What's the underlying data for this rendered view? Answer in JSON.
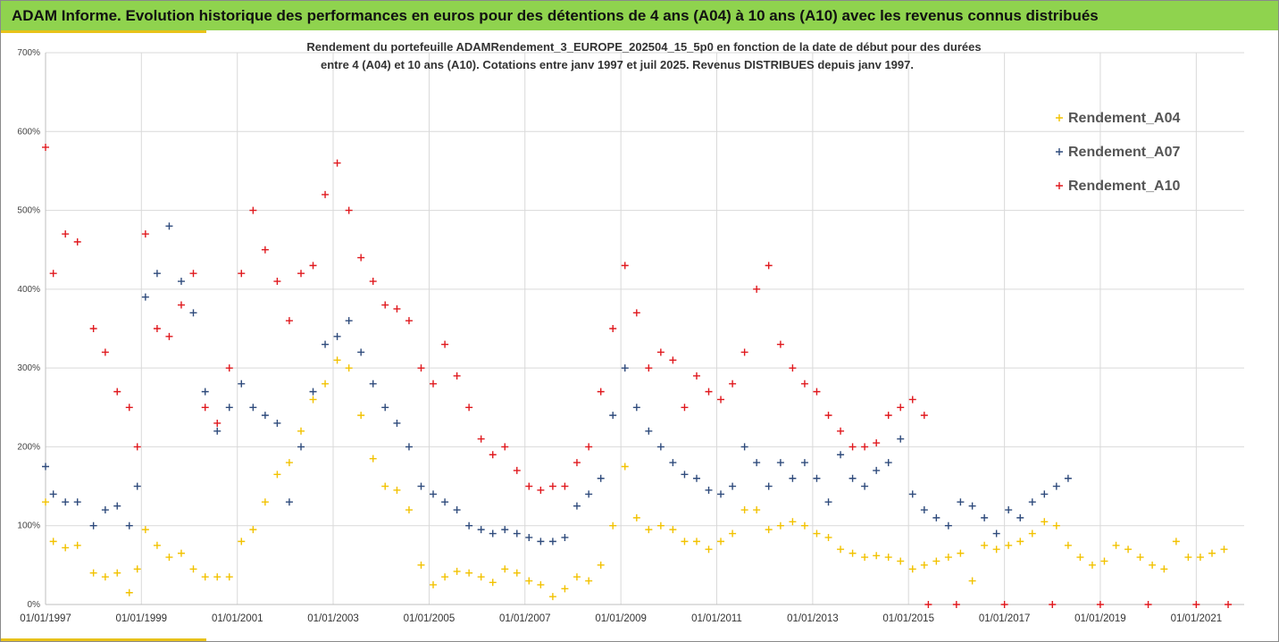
{
  "header": {
    "title": "ADAM Informe. Evolution historique des performances en euros pour des détentions de 4 ans (A04) à 10 ans (A10) avec les revenus connus distribués"
  },
  "colors": {
    "title_bar": "#8fd34e",
    "accent": "#e8c21a",
    "A04": "#f2c200",
    "A07": "#2f4b7c",
    "A10": "#e0191e"
  },
  "chart_data": {
    "type": "scatter",
    "title_lines": [
      "Rendement du portefeuille ADAMRendement_3_EUROPE_202504_15_5p0  en fonction de la date de début pour des durées",
      "entre 4 (A04) et 10 ans (A10). Cotations  entre janv 1997 et juil 2025. Revenus DISTRIBUES depuis janv 1997."
    ],
    "xlabel": "",
    "ylabel": "",
    "x_range": [
      "1997-01-01",
      "2022-01-01"
    ],
    "ylim": [
      0,
      700
    ],
    "y_ticks": [
      "0%",
      "100%",
      "200%",
      "300%",
      "400%",
      "500%",
      "600%",
      "700%"
    ],
    "x_ticks": [
      "01/01/1997",
      "01/01/1999",
      "01/01/2001",
      "01/01/2003",
      "01/01/2005",
      "01/01/2007",
      "01/01/2009",
      "01/01/2011",
      "01/01/2013",
      "01/01/2015",
      "01/01/2017",
      "01/01/2019",
      "01/01/2021"
    ],
    "grid": true,
    "legend_position": "top-right",
    "marker": "+",
    "series": [
      {
        "name": "Rendement_A04",
        "color": "#f2c200",
        "points": [
          [
            "1997-01-01",
            130
          ],
          [
            "1997-03-01",
            80
          ],
          [
            "1997-06-01",
            72
          ],
          [
            "1997-09-01",
            75
          ],
          [
            "1998-01-01",
            40
          ],
          [
            "1998-04-01",
            35
          ],
          [
            "1998-07-01",
            40
          ],
          [
            "1998-10-01",
            15
          ],
          [
            "1998-12-01",
            45
          ],
          [
            "1999-02-01",
            95
          ],
          [
            "1999-05-01",
            75
          ],
          [
            "1999-08-01",
            60
          ],
          [
            "1999-11-01",
            65
          ],
          [
            "2000-02-01",
            45
          ],
          [
            "2000-05-01",
            35
          ],
          [
            "2000-08-01",
            35
          ],
          [
            "2000-11-01",
            35
          ],
          [
            "2001-02-01",
            80
          ],
          [
            "2001-05-01",
            95
          ],
          [
            "2001-08-01",
            130
          ],
          [
            "2001-11-01",
            165
          ],
          [
            "2002-02-01",
            180
          ],
          [
            "2002-05-01",
            220
          ],
          [
            "2002-08-01",
            260
          ],
          [
            "2002-11-01",
            280
          ],
          [
            "2003-02-01",
            310
          ],
          [
            "2003-05-01",
            300
          ],
          [
            "2003-08-01",
            240
          ],
          [
            "2003-11-01",
            185
          ],
          [
            "2004-02-01",
            150
          ],
          [
            "2004-05-01",
            145
          ],
          [
            "2004-08-01",
            120
          ],
          [
            "2004-11-01",
            50
          ],
          [
            "2005-02-01",
            25
          ],
          [
            "2005-05-01",
            35
          ],
          [
            "2005-08-01",
            42
          ],
          [
            "2005-11-01",
            40
          ],
          [
            "2006-02-01",
            35
          ],
          [
            "2006-05-01",
            28
          ],
          [
            "2006-08-01",
            45
          ],
          [
            "2006-11-01",
            40
          ],
          [
            "2007-02-01",
            30
          ],
          [
            "2007-05-01",
            25
          ],
          [
            "2007-08-01",
            10
          ],
          [
            "2007-11-01",
            20
          ],
          [
            "2008-02-01",
            35
          ],
          [
            "2008-05-01",
            30
          ],
          [
            "2008-08-01",
            50
          ],
          [
            "2008-11-01",
            100
          ],
          [
            "2009-02-01",
            175
          ],
          [
            "2009-05-01",
            110
          ],
          [
            "2009-08-01",
            95
          ],
          [
            "2009-11-01",
            100
          ],
          [
            "2010-02-01",
            95
          ],
          [
            "2010-05-01",
            80
          ],
          [
            "2010-08-01",
            80
          ],
          [
            "2010-11-01",
            70
          ],
          [
            "2011-02-01",
            80
          ],
          [
            "2011-05-01",
            90
          ],
          [
            "2011-08-01",
            120
          ],
          [
            "2011-11-01",
            120
          ],
          [
            "2012-02-01",
            95
          ],
          [
            "2012-05-01",
            100
          ],
          [
            "2012-08-01",
            105
          ],
          [
            "2012-11-01",
            100
          ],
          [
            "2013-02-01",
            90
          ],
          [
            "2013-05-01",
            85
          ],
          [
            "2013-08-01",
            70
          ],
          [
            "2013-11-01",
            65
          ],
          [
            "2014-02-01",
            60
          ],
          [
            "2014-05-01",
            62
          ],
          [
            "2014-08-01",
            60
          ],
          [
            "2014-11-01",
            55
          ],
          [
            "2015-02-01",
            45
          ],
          [
            "2015-05-01",
            50
          ],
          [
            "2015-08-01",
            55
          ],
          [
            "2015-11-01",
            60
          ],
          [
            "2016-02-01",
            65
          ],
          [
            "2016-05-01",
            30
          ],
          [
            "2016-08-01",
            75
          ],
          [
            "2016-11-01",
            70
          ],
          [
            "2017-02-01",
            75
          ],
          [
            "2017-05-01",
            80
          ],
          [
            "2017-08-01",
            90
          ],
          [
            "2017-11-01",
            105
          ],
          [
            "2018-02-01",
            100
          ],
          [
            "2018-05-01",
            75
          ],
          [
            "2018-08-01",
            60
          ],
          [
            "2018-11-01",
            50
          ],
          [
            "2019-02-01",
            55
          ],
          [
            "2019-05-01",
            75
          ],
          [
            "2019-08-01",
            70
          ],
          [
            "2019-11-01",
            60
          ],
          [
            "2020-02-01",
            50
          ],
          [
            "2020-05-01",
            45
          ],
          [
            "2020-08-01",
            80
          ],
          [
            "2020-11-01",
            60
          ],
          [
            "2021-02-01",
            60
          ],
          [
            "2021-05-01",
            65
          ],
          [
            "2021-08-01",
            70
          ]
        ]
      },
      {
        "name": "Rendement_A07",
        "color": "#2f4b7c",
        "points": [
          [
            "1997-01-01",
            175
          ],
          [
            "1997-03-01",
            140
          ],
          [
            "1997-06-01",
            130
          ],
          [
            "1997-09-01",
            130
          ],
          [
            "1998-01-01",
            100
          ],
          [
            "1998-04-01",
            120
          ],
          [
            "1998-07-01",
            125
          ],
          [
            "1998-10-01",
            100
          ],
          [
            "1998-12-01",
            150
          ],
          [
            "1999-02-01",
            390
          ],
          [
            "1999-05-01",
            420
          ],
          [
            "1999-08-01",
            480
          ],
          [
            "1999-11-01",
            410
          ],
          [
            "2000-02-01",
            370
          ],
          [
            "2000-05-01",
            270
          ],
          [
            "2000-08-01",
            220
          ],
          [
            "2000-11-01",
            250
          ],
          [
            "2001-02-01",
            280
          ],
          [
            "2001-05-01",
            250
          ],
          [
            "2001-08-01",
            240
          ],
          [
            "2001-11-01",
            230
          ],
          [
            "2002-02-01",
            130
          ],
          [
            "2002-05-01",
            200
          ],
          [
            "2002-08-01",
            270
          ],
          [
            "2002-11-01",
            330
          ],
          [
            "2003-02-01",
            340
          ],
          [
            "2003-05-01",
            360
          ],
          [
            "2003-08-01",
            320
          ],
          [
            "2003-11-01",
            280
          ],
          [
            "2004-02-01",
            250
          ],
          [
            "2004-05-01",
            230
          ],
          [
            "2004-08-01",
            200
          ],
          [
            "2004-11-01",
            150
          ],
          [
            "2005-02-01",
            140
          ],
          [
            "2005-05-01",
            130
          ],
          [
            "2005-08-01",
            120
          ],
          [
            "2005-11-01",
            100
          ],
          [
            "2006-02-01",
            95
          ],
          [
            "2006-05-01",
            90
          ],
          [
            "2006-08-01",
            95
          ],
          [
            "2006-11-01",
            90
          ],
          [
            "2007-02-01",
            85
          ],
          [
            "2007-05-01",
            80
          ],
          [
            "2007-08-01",
            80
          ],
          [
            "2007-11-01",
            85
          ],
          [
            "2008-02-01",
            125
          ],
          [
            "2008-05-01",
            140
          ],
          [
            "2008-08-01",
            160
          ],
          [
            "2008-11-01",
            240
          ],
          [
            "2009-02-01",
            300
          ],
          [
            "2009-05-01",
            250
          ],
          [
            "2009-08-01",
            220
          ],
          [
            "2009-11-01",
            200
          ],
          [
            "2010-02-01",
            180
          ],
          [
            "2010-05-01",
            165
          ],
          [
            "2010-08-01",
            160
          ],
          [
            "2010-11-01",
            145
          ],
          [
            "2011-02-01",
            140
          ],
          [
            "2011-05-01",
            150
          ],
          [
            "2011-08-01",
            200
          ],
          [
            "2011-11-01",
            180
          ],
          [
            "2012-02-01",
            150
          ],
          [
            "2012-05-01",
            180
          ],
          [
            "2012-08-01",
            160
          ],
          [
            "2012-11-01",
            180
          ],
          [
            "2013-02-01",
            160
          ],
          [
            "2013-05-01",
            130
          ],
          [
            "2013-08-01",
            190
          ],
          [
            "2013-11-01",
            160
          ],
          [
            "2014-02-01",
            150
          ],
          [
            "2014-05-01",
            170
          ],
          [
            "2014-08-01",
            180
          ],
          [
            "2014-11-01",
            210
          ],
          [
            "2015-02-01",
            140
          ],
          [
            "2015-05-01",
            120
          ],
          [
            "2015-08-01",
            110
          ],
          [
            "2015-11-01",
            100
          ],
          [
            "2016-02-01",
            130
          ],
          [
            "2016-05-01",
            125
          ],
          [
            "2016-08-01",
            110
          ],
          [
            "2016-11-01",
            90
          ],
          [
            "2017-02-01",
            120
          ],
          [
            "2017-05-01",
            110
          ],
          [
            "2017-08-01",
            130
          ],
          [
            "2017-11-01",
            140
          ],
          [
            "2018-02-01",
            150
          ],
          [
            "2018-05-01",
            160
          ]
        ]
      },
      {
        "name": "Rendement_A10",
        "color": "#e0191e",
        "points": [
          [
            "1997-01-01",
            580
          ],
          [
            "1997-03-01",
            420
          ],
          [
            "1997-06-01",
            470
          ],
          [
            "1997-09-01",
            460
          ],
          [
            "1998-01-01",
            350
          ],
          [
            "1998-04-01",
            320
          ],
          [
            "1998-07-01",
            270
          ],
          [
            "1998-10-01",
            250
          ],
          [
            "1998-12-01",
            200
          ],
          [
            "1999-02-01",
            470
          ],
          [
            "1999-05-01",
            350
          ],
          [
            "1999-08-01",
            340
          ],
          [
            "1999-11-01",
            380
          ],
          [
            "2000-02-01",
            420
          ],
          [
            "2000-05-01",
            250
          ],
          [
            "2000-08-01",
            230
          ],
          [
            "2000-11-01",
            300
          ],
          [
            "2001-02-01",
            420
          ],
          [
            "2001-05-01",
            500
          ],
          [
            "2001-08-01",
            450
          ],
          [
            "2001-11-01",
            410
          ],
          [
            "2002-02-01",
            360
          ],
          [
            "2002-05-01",
            420
          ],
          [
            "2002-08-01",
            430
          ],
          [
            "2002-11-01",
            520
          ],
          [
            "2003-02-01",
            560
          ],
          [
            "2003-05-01",
            500
          ],
          [
            "2003-08-01",
            440
          ],
          [
            "2003-11-01",
            410
          ],
          [
            "2004-02-01",
            380
          ],
          [
            "2004-05-01",
            375
          ],
          [
            "2004-08-01",
            360
          ],
          [
            "2004-11-01",
            300
          ],
          [
            "2005-02-01",
            280
          ],
          [
            "2005-05-01",
            330
          ],
          [
            "2005-08-01",
            290
          ],
          [
            "2005-11-01",
            250
          ],
          [
            "2006-02-01",
            210
          ],
          [
            "2006-05-01",
            190
          ],
          [
            "2006-08-01",
            200
          ],
          [
            "2006-11-01",
            170
          ],
          [
            "2007-02-01",
            150
          ],
          [
            "2007-05-01",
            145
          ],
          [
            "2007-08-01",
            150
          ],
          [
            "2007-11-01",
            150
          ],
          [
            "2008-02-01",
            180
          ],
          [
            "2008-05-01",
            200
          ],
          [
            "2008-08-01",
            270
          ],
          [
            "2008-11-01",
            350
          ],
          [
            "2009-02-01",
            430
          ],
          [
            "2009-05-01",
            370
          ],
          [
            "2009-08-01",
            300
          ],
          [
            "2009-11-01",
            320
          ],
          [
            "2010-02-01",
            310
          ],
          [
            "2010-05-01",
            250
          ],
          [
            "2010-08-01",
            290
          ],
          [
            "2010-11-01",
            270
          ],
          [
            "2011-02-01",
            260
          ],
          [
            "2011-05-01",
            280
          ],
          [
            "2011-08-01",
            320
          ],
          [
            "2011-11-01",
            400
          ],
          [
            "2012-02-01",
            430
          ],
          [
            "2012-05-01",
            330
          ],
          [
            "2012-08-01",
            300
          ],
          [
            "2012-11-01",
            280
          ],
          [
            "2013-02-01",
            270
          ],
          [
            "2013-05-01",
            240
          ],
          [
            "2013-08-01",
            220
          ],
          [
            "2013-11-01",
            200
          ],
          [
            "2014-02-01",
            200
          ],
          [
            "2014-05-01",
            205
          ],
          [
            "2014-08-01",
            240
          ],
          [
            "2014-11-01",
            250
          ],
          [
            "2015-02-01",
            260
          ],
          [
            "2015-05-01",
            240
          ],
          [
            "2015-06-01",
            0
          ],
          [
            "2016-01-01",
            0
          ],
          [
            "2017-01-01",
            0
          ],
          [
            "2018-01-01",
            0
          ],
          [
            "2019-01-01",
            0
          ],
          [
            "2020-01-01",
            0
          ],
          [
            "2021-01-01",
            0
          ],
          [
            "2021-09-01",
            0
          ]
        ]
      }
    ]
  }
}
